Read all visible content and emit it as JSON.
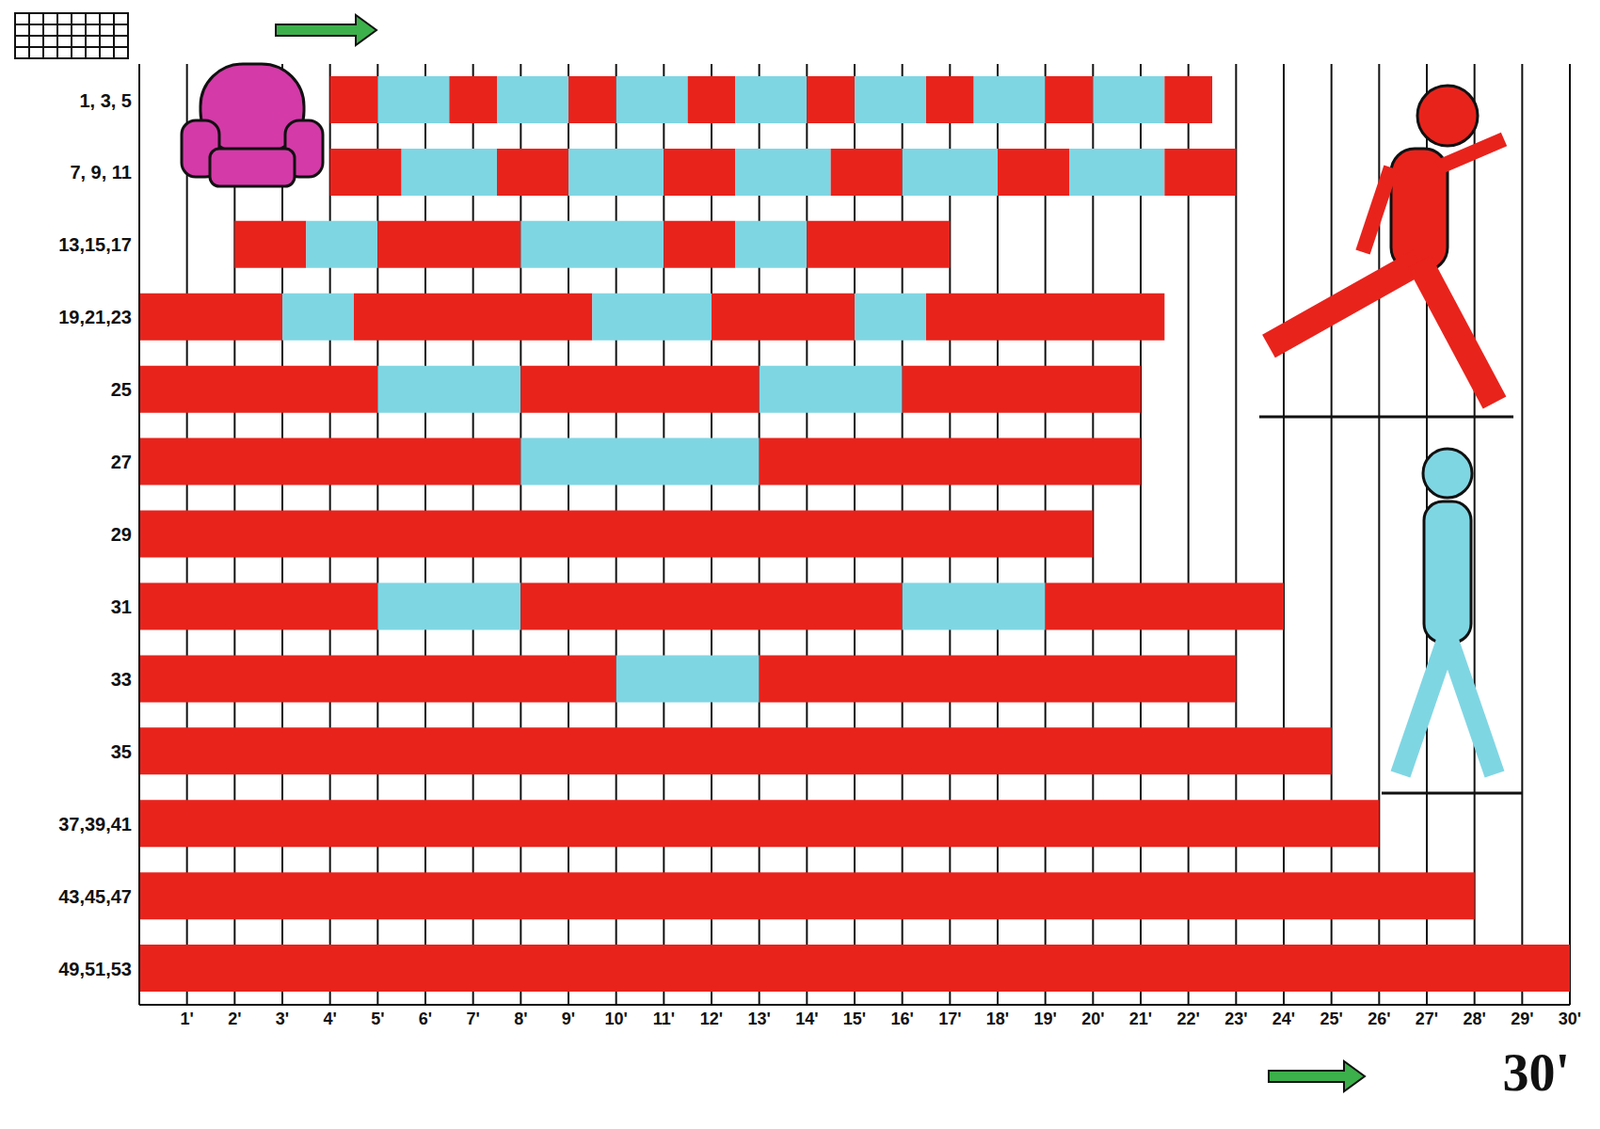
{
  "chart_data": {
    "type": "bar",
    "orientation": "horizontal",
    "stacked": true,
    "grid": true,
    "categories": [
      "1, 3, 5",
      "7, 9, 11",
      "13,15,17",
      "19,21,23",
      "25",
      "27",
      "29",
      "31",
      "33",
      "35",
      "37,39,41",
      "43,45,47",
      "49,51,53"
    ],
    "starts": [
      4,
      4,
      2,
      0,
      0,
      0,
      0,
      0,
      0,
      0,
      0,
      0,
      0
    ],
    "segments": [
      [
        1,
        1.5,
        1,
        1.5,
        1,
        1.5,
        1,
        1.5,
        1,
        1.5,
        1,
        1.5,
        1,
        1.5,
        1
      ],
      [
        1.5,
        2,
        1.5,
        2,
        1.5,
        2,
        1.5,
        2,
        1.5,
        2,
        1.5
      ],
      [
        1.5,
        1.5,
        3,
        3,
        1.5,
        1.5,
        3
      ],
      [
        3,
        1.5,
        5,
        2.5,
        3,
        1.5,
        5
      ],
      [
        5,
        3,
        5,
        3,
        5
      ],
      [
        8,
        5,
        8
      ],
      [
        20
      ],
      [
        5,
        3,
        8,
        3,
        5
      ],
      [
        10,
        3,
        10
      ],
      [
        25
      ],
      [
        26
      ],
      [
        28
      ],
      [
        30
      ]
    ],
    "colors": [
      "#e8231c",
      "#7fd6e3"
    ],
    "xlim": [
      0,
      30
    ],
    "xticks": [
      {
        "value": 1,
        "label": "1'"
      },
      {
        "value": 2,
        "label": "2'"
      },
      {
        "value": 3,
        "label": "3'"
      },
      {
        "value": 4,
        "label": "4'"
      },
      {
        "value": 5,
        "label": "5'"
      },
      {
        "value": 6,
        "label": "6'"
      },
      {
        "value": 7,
        "label": "7'"
      },
      {
        "value": 8,
        "label": "8'"
      },
      {
        "value": 9,
        "label": "9'"
      },
      {
        "value": 10,
        "label": "10'"
      },
      {
        "value": 11,
        "label": "11'"
      },
      {
        "value": 12,
        "label": "12'"
      },
      {
        "value": 13,
        "label": "13'"
      },
      {
        "value": 14,
        "label": "14'"
      },
      {
        "value": 15,
        "label": "15'"
      },
      {
        "value": 16,
        "label": "16'"
      },
      {
        "value": 17,
        "label": "17'"
      },
      {
        "value": 18,
        "label": "18'"
      },
      {
        "value": 19,
        "label": "19'"
      },
      {
        "value": 20,
        "label": "20'"
      },
      {
        "value": 21,
        "label": "21'"
      },
      {
        "value": 22,
        "label": "22'"
      },
      {
        "value": 23,
        "label": "23'"
      },
      {
        "value": 24,
        "label": "24'"
      },
      {
        "value": 25,
        "label": "25'"
      },
      {
        "value": 26,
        "label": "26'"
      },
      {
        "value": 27,
        "label": "27'"
      },
      {
        "value": 28,
        "label": "28'"
      },
      {
        "value": 29,
        "label": "29'"
      },
      {
        "value": 30,
        "label": "30'"
      }
    ],
    "annotations": [
      "30'"
    ]
  }
}
